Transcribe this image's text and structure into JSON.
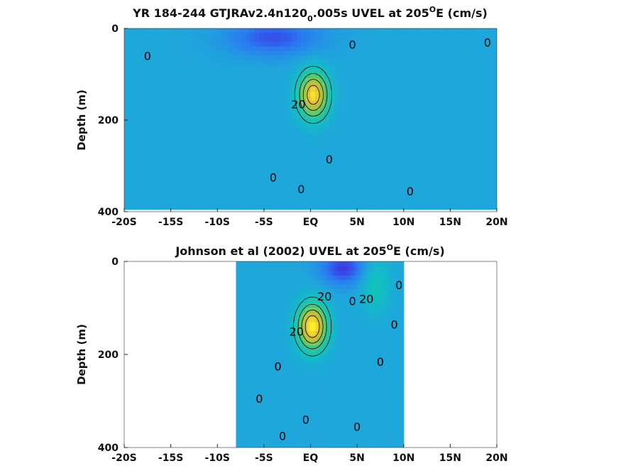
{
  "chart_data": [
    {
      "type": "heatmap",
      "title": {
        "prefix": "YR 184-244 GTJRAv2.4n120",
        "subscript": "0",
        "middle": ".005s UVEL at 205",
        "superscript": "O",
        "suffix": "E (cm/s)"
      },
      "xlabel": "",
      "ylabel": "Depth (m)",
      "xlim": [
        -20,
        20
      ],
      "ylim": [
        0,
        400
      ],
      "y_reversed": true,
      "x_ticks": [
        {
          "value": -20,
          "label": "-20S"
        },
        {
          "value": -15,
          "label": "-15S"
        },
        {
          "value": -10,
          "label": "-10S"
        },
        {
          "value": -5,
          "label": "-5S"
        },
        {
          "value": 0,
          "label": "EQ"
        },
        {
          "value": 5,
          "label": "5N"
        },
        {
          "value": 10,
          "label": "10N"
        },
        {
          "value": 15,
          "label": "15N"
        },
        {
          "value": 20,
          "label": "20N"
        }
      ],
      "y_ticks": [
        {
          "value": 0,
          "label": "0"
        },
        {
          "value": 200,
          "label": "200"
        },
        {
          "value": 400,
          "label": "400"
        }
      ],
      "data_extent": {
        "lat": [
          -20,
          20
        ],
        "depth": [
          0,
          395
        ]
      },
      "colormap": [
        "#3f26e0",
        "#2a7bf1",
        "#1ea7db",
        "#10c1c0",
        "#35c791",
        "#8fca4a",
        "#e0b832",
        "#faf52a"
      ],
      "color_range": [
        -40,
        100
      ],
      "features": [
        {
          "kind": "core",
          "lat": 0.3,
          "depth": 145,
          "value": 95,
          "lat_width": 1.6,
          "depth_width": 50
        },
        {
          "kind": "minimum",
          "lat": -4.0,
          "depth": 20,
          "value": -30,
          "lat_width": 5,
          "depth_width": 40
        }
      ],
      "contour_labels": [
        {
          "text": "0",
          "lat": -17.5,
          "depth": 60
        },
        {
          "text": "0",
          "lat": 4.5,
          "depth": 35
        },
        {
          "text": "0",
          "lat": 19.0,
          "depth": 30
        },
        {
          "text": "20",
          "lat": -1.3,
          "depth": 165
        },
        {
          "text": "0",
          "lat": 2.0,
          "depth": 285
        },
        {
          "text": "0",
          "lat": -4.0,
          "depth": 325
        },
        {
          "text": "0",
          "lat": -1.0,
          "depth": 350
        },
        {
          "text": "0",
          "lat": 10.7,
          "depth": 355
        }
      ]
    },
    {
      "type": "heatmap",
      "title": {
        "prefix": "Johnson et al (2002) UVEL at 205",
        "superscript": "O",
        "suffix": "E (cm/s)"
      },
      "xlabel": "",
      "ylabel": "Depth (m)",
      "xlim": [
        -20,
        20
      ],
      "ylim": [
        0,
        400
      ],
      "y_reversed": true,
      "x_ticks": [
        {
          "value": -20,
          "label": "-20S"
        },
        {
          "value": -15,
          "label": "-15S"
        },
        {
          "value": -10,
          "label": "-10S"
        },
        {
          "value": -5,
          "label": "-5S"
        },
        {
          "value": 0,
          "label": "EQ"
        },
        {
          "value": 5,
          "label": "5N"
        },
        {
          "value": 10,
          "label": "10N"
        },
        {
          "value": 15,
          "label": "15N"
        },
        {
          "value": 20,
          "label": "20N"
        }
      ],
      "y_ticks": [
        {
          "value": 0,
          "label": "0"
        },
        {
          "value": 200,
          "label": "200"
        },
        {
          "value": 400,
          "label": "400"
        }
      ],
      "data_extent": {
        "lat": [
          -8,
          10
        ],
        "depth": [
          0,
          400
        ]
      },
      "colormap": [
        "#3f26e0",
        "#2a7bf1",
        "#1ea7db",
        "#10c1c0",
        "#35c791",
        "#8fca4a",
        "#e0b832",
        "#faf52a"
      ],
      "color_range": [
        -40,
        100
      ],
      "features": [
        {
          "kind": "core",
          "lat": 0.2,
          "depth": 140,
          "value": 100,
          "lat_width": 1.6,
          "depth_width": 50
        },
        {
          "kind": "minimum",
          "lat": 3.5,
          "depth": 15,
          "value": -35,
          "lat_width": 2.5,
          "depth_width": 35
        },
        {
          "kind": "maximum",
          "lat": 7.0,
          "depth": 50,
          "value": 25,
          "lat_width": 1.5,
          "depth_width": 60
        }
      ],
      "contour_labels": [
        {
          "text": "20",
          "lat": 1.5,
          "depth": 75
        },
        {
          "text": "0",
          "lat": 4.5,
          "depth": 85
        },
        {
          "text": "20",
          "lat": 6.0,
          "depth": 80
        },
        {
          "text": "0",
          "lat": 9.5,
          "depth": 50
        },
        {
          "text": "0",
          "lat": 9.0,
          "depth": 135
        },
        {
          "text": "20",
          "lat": -1.5,
          "depth": 150
        },
        {
          "text": "0",
          "lat": 7.5,
          "depth": 215
        },
        {
          "text": "0",
          "lat": -3.5,
          "depth": 225
        },
        {
          "text": "0",
          "lat": -5.5,
          "depth": 295
        },
        {
          "text": "0",
          "lat": -0.5,
          "depth": 340
        },
        {
          "text": "0",
          "lat": 5.0,
          "depth": 355
        },
        {
          "text": "0",
          "lat": -3.0,
          "depth": 375
        }
      ]
    }
  ]
}
